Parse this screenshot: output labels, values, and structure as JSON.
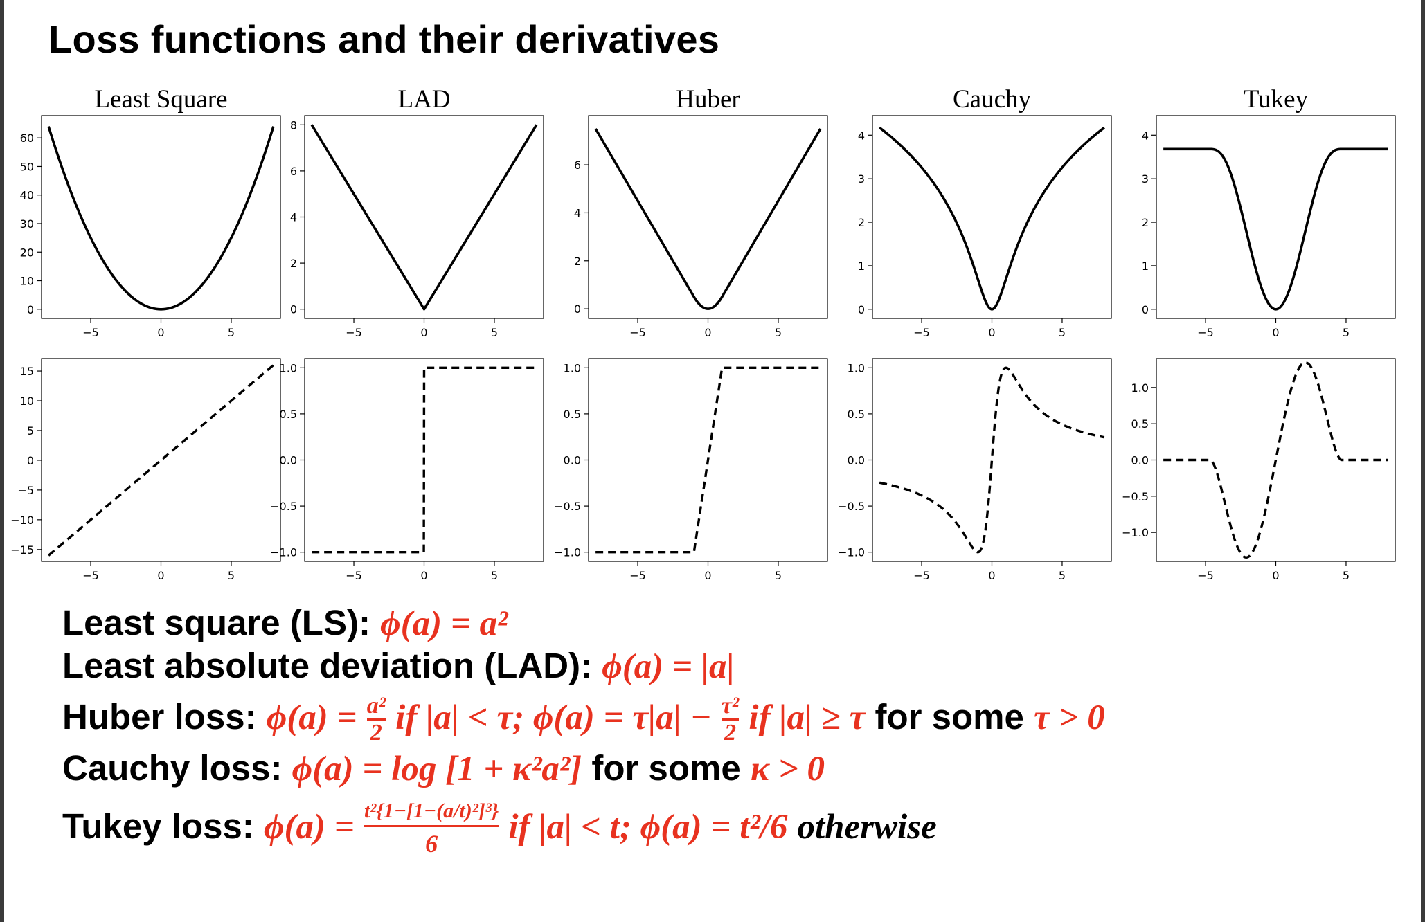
{
  "title": "Loss functions and their derivatives",
  "chart_data": [
    {
      "panel": "loss-ls",
      "type": "line",
      "title": "Least Square",
      "fn": "ls",
      "xlim": [
        -8.5,
        8.5
      ],
      "ylim": [
        -3.2,
        67.8
      ],
      "xticks": [
        -5,
        0,
        5
      ],
      "yticks": [
        0,
        10,
        20,
        30,
        40,
        50,
        60
      ],
      "style": "solid",
      "x": [
        -8,
        -6,
        -4,
        -2,
        0,
        2,
        4,
        6,
        8
      ],
      "y": [
        64,
        36,
        16,
        4,
        0,
        4,
        16,
        36,
        64
      ]
    },
    {
      "panel": "loss-lad",
      "type": "line",
      "title": "LAD",
      "fn": "lad",
      "xlim": [
        -8.5,
        8.5
      ],
      "ylim": [
        -0.4,
        8.4
      ],
      "xticks": [
        -5,
        0,
        5
      ],
      "yticks": [
        0,
        2,
        4,
        6,
        8
      ],
      "style": "solid",
      "x": [
        -8,
        -4,
        0,
        4,
        8
      ],
      "y": [
        8,
        4,
        0,
        4,
        8
      ]
    },
    {
      "panel": "loss-huber",
      "type": "line",
      "title": "Huber",
      "fn": "huber",
      "xlim": [
        -8.5,
        8.5
      ],
      "ylim": [
        -0.4,
        8.05
      ],
      "xticks": [
        -5,
        0,
        5
      ],
      "yticks": [
        0,
        2,
        4,
        6
      ],
      "style": "solid",
      "x": [
        -8,
        -4,
        -1,
        0,
        1,
        4,
        8
      ],
      "y": [
        7.5,
        3.5,
        0.5,
        0,
        0.5,
        3.5,
        7.5
      ]
    },
    {
      "panel": "loss-cauchy",
      "type": "line",
      "title": "Cauchy",
      "fn": "cauchy",
      "xlim": [
        -8.5,
        8.5
      ],
      "ylim": [
        -0.21,
        4.45
      ],
      "xticks": [
        -5,
        0,
        5
      ],
      "yticks": [
        0,
        1,
        2,
        3,
        4
      ],
      "style": "solid",
      "x": [
        -8,
        -4,
        -2,
        -1,
        0,
        1,
        2,
        4,
        8
      ],
      "y": [
        4.17,
        2.83,
        1.61,
        0.69,
        0,
        0.69,
        1.61,
        2.83,
        4.17
      ]
    },
    {
      "panel": "loss-tukey",
      "type": "line",
      "title": "Tukey",
      "fn": "tukey",
      "xlim": [
        -8.5,
        8.5
      ],
      "ylim": [
        -0.21,
        4.45
      ],
      "xticks": [
        -5,
        0,
        5
      ],
      "yticks": [
        0,
        1,
        2,
        3,
        4
      ],
      "style": "solid",
      "x": [
        -8,
        -5,
        -3,
        -1,
        0,
        1,
        3,
        5,
        8
      ],
      "y": [
        3.67,
        3.67,
        3.17,
        0.91,
        0,
        0.91,
        3.17,
        3.67,
        3.67
      ]
    },
    {
      "panel": "deriv-ls",
      "type": "line",
      "title": "",
      "fn": "dls",
      "xlim": [
        -8.5,
        8.5
      ],
      "ylim": [
        -17,
        17.1
      ],
      "xticks": [
        -5,
        0,
        5
      ],
      "yticks": [
        -15,
        -10,
        -5,
        0,
        5,
        10,
        15
      ],
      "style": "dashed",
      "x": [
        -8,
        0,
        8
      ],
      "y": [
        -16,
        0,
        16
      ]
    },
    {
      "panel": "deriv-lad",
      "type": "line",
      "title": "",
      "fn": "dlad",
      "xlim": [
        -8.5,
        8.5
      ],
      "ylim": [
        -1.1,
        1.1
      ],
      "xticks": [
        -5,
        0,
        5
      ],
      "yticks": [
        -1.0,
        -0.5,
        0.0,
        0.5,
        1.0
      ],
      "style": "dashed",
      "x": [
        -8,
        0,
        0,
        8
      ],
      "y": [
        -1,
        -1,
        1,
        1
      ]
    },
    {
      "panel": "deriv-huber",
      "type": "line",
      "title": "",
      "fn": "dhuber",
      "xlim": [
        -8.5,
        8.5
      ],
      "ylim": [
        -1.1,
        1.1
      ],
      "xticks": [
        -5,
        0,
        5
      ],
      "yticks": [
        -1.0,
        -0.5,
        0.0,
        0.5,
        1.0
      ],
      "style": "dashed",
      "x": [
        -8,
        -1,
        1,
        8
      ],
      "y": [
        -1,
        -1,
        1,
        1
      ]
    },
    {
      "panel": "deriv-cauchy",
      "type": "line",
      "title": "",
      "fn": "dcauchy",
      "xlim": [
        -8.5,
        8.5
      ],
      "ylim": [
        -1.1,
        1.1
      ],
      "xticks": [
        -5,
        0,
        5
      ],
      "yticks": [
        -1.0,
        -0.5,
        0.0,
        0.5,
        1.0
      ],
      "style": "dashed",
      "x": [
        -8,
        -4,
        -1,
        0,
        1,
        4,
        8
      ],
      "y": [
        -0.25,
        -0.47,
        -1,
        0,
        1,
        0.47,
        0.25
      ]
    },
    {
      "panel": "deriv-tukey",
      "type": "line",
      "title": "",
      "fn": "dtukey",
      "xlim": [
        -8.5,
        8.5
      ],
      "ylim": [
        -1.4,
        1.4
      ],
      "xticks": [
        -5,
        0,
        5
      ],
      "yticks": [
        -1.0,
        -0.5,
        0.0,
        0.5,
        1.0
      ],
      "style": "dashed",
      "x": [
        -8,
        -5,
        -2,
        0,
        2,
        5,
        8
      ],
      "y": [
        0,
        0,
        -1.32,
        0,
        1.32,
        0,
        0
      ]
    }
  ],
  "formulas": {
    "ls": {
      "label": "Least square (LS):",
      "expr": "ϕ(a) = a²"
    },
    "lad": {
      "label": "Least absolute deviation (LAD):",
      "expr": "ϕ(a) = |a|"
    },
    "huber": {
      "label": "Huber loss:",
      "expr_a": "ϕ(a) =",
      "frac1_num": "a²",
      "frac1_den": "2",
      "expr_b": "if |a| < τ; ϕ(a) = τ|a| −",
      "frac2_num": "τ²",
      "frac2_den": "2",
      "expr_c": "if |a| ≥ τ",
      "mid": "for some",
      "expr_d": "τ > 0"
    },
    "cauchy": {
      "label": "Cauchy loss:",
      "expr": "ϕ(a) = log [1 + κ²a²]",
      "mid": "for some",
      "expr_d": "κ > 0"
    },
    "tukey": {
      "label": "Tukey loss:",
      "expr_a": "ϕ(a) =",
      "frac_num": "t²{1−[1−(a/t)²]³}",
      "frac_den": "6",
      "expr_b": "if |a| < t; ϕ(a) = t²/6",
      "expr_c": "otherwise"
    }
  }
}
